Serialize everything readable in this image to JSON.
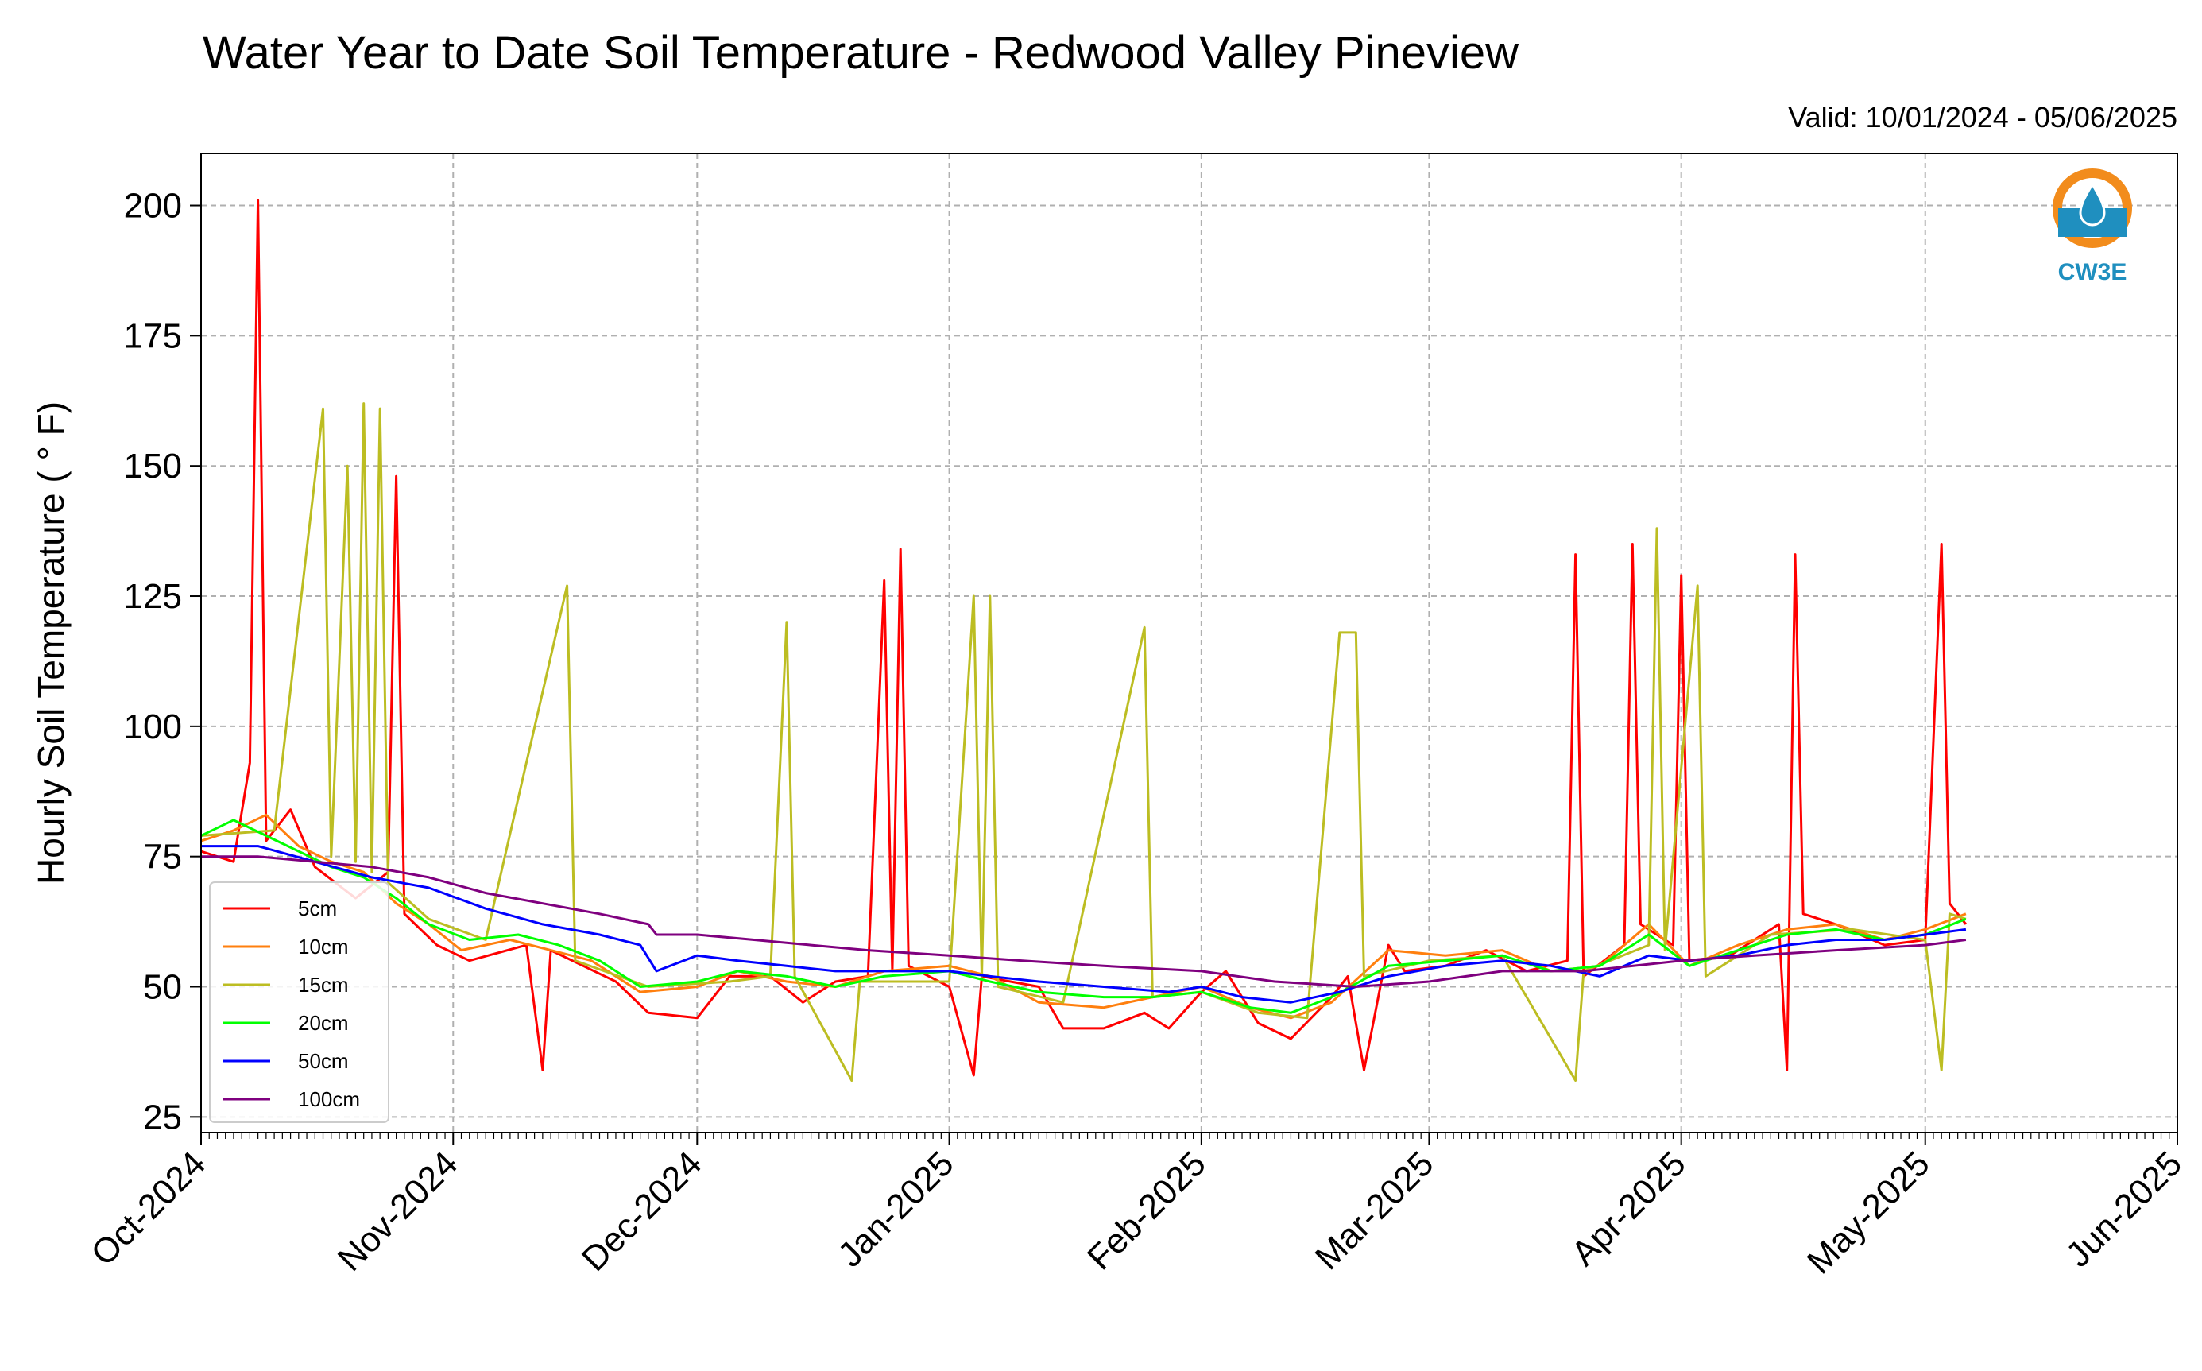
{
  "chart_data": {
    "type": "line",
    "title": "Water Year to Date Soil Temperature - Redwood Valley Pineview",
    "subtitle": "Valid: 10/01/2024 - 05/06/2025",
    "xlabel": "",
    "ylabel": "Hourly Soil Temperature ( ° F)",
    "xlim": [
      "2024-10-01",
      "2025-06-01"
    ],
    "ylim": [
      22,
      210
    ],
    "y_ticks": [
      25,
      50,
      75,
      100,
      125,
      150,
      175,
      200
    ],
    "x_ticks": [
      "2024-10-01",
      "2024-11-01",
      "2024-12-01",
      "2025-01-01",
      "2025-02-01",
      "2025-03-01",
      "2025-04-01",
      "2025-05-01",
      "2025-06-01"
    ],
    "x_tick_labels": [
      "Oct-2024",
      "Nov-2024",
      "Dec-2024",
      "Jan-2025",
      "Feb-2025",
      "Mar-2025",
      "Apr-2025",
      "May-2025",
      "Jun-2025"
    ],
    "grid": true,
    "legend_position": "lower-left",
    "series": [
      {
        "name": "5cm",
        "color": "#ff0000",
        "points": [
          [
            "2024-10-01",
            76
          ],
          [
            "2024-10-05",
            74
          ],
          [
            "2024-10-07",
            93
          ],
          [
            "2024-10-08",
            201
          ],
          [
            "2024-10-09",
            78
          ],
          [
            "2024-10-12",
            84
          ],
          [
            "2024-10-15",
            73
          ],
          [
            "2024-10-20",
            67
          ],
          [
            "2024-10-24",
            72
          ],
          [
            "2024-10-25",
            148
          ],
          [
            "2024-10-26",
            64
          ],
          [
            "2024-10-30",
            58
          ],
          [
            "2024-11-03",
            55
          ],
          [
            "2024-11-10",
            58
          ],
          [
            "2024-11-12",
            34
          ],
          [
            "2024-11-13",
            57
          ],
          [
            "2024-11-17",
            54
          ],
          [
            "2024-11-21",
            51
          ],
          [
            "2024-11-25",
            45
          ],
          [
            "2024-12-01",
            44
          ],
          [
            "2024-12-05",
            52
          ],
          [
            "2024-12-10",
            52
          ],
          [
            "2024-12-14",
            47
          ],
          [
            "2024-12-18",
            51
          ],
          [
            "2024-12-22",
            52
          ],
          [
            "2024-12-24",
            128
          ],
          [
            "2024-12-25",
            53
          ],
          [
            "2024-12-26",
            134
          ],
          [
            "2024-12-27",
            54
          ],
          [
            "2025-01-01",
            50
          ],
          [
            "2025-01-04",
            33
          ],
          [
            "2025-01-05",
            52
          ],
          [
            "2025-01-12",
            50
          ],
          [
            "2025-01-15",
            42
          ],
          [
            "2025-01-20",
            42
          ],
          [
            "2025-01-25",
            45
          ],
          [
            "2025-01-28",
            42
          ],
          [
            "2025-02-01",
            49
          ],
          [
            "2025-02-04",
            53
          ],
          [
            "2025-02-08",
            43
          ],
          [
            "2025-02-12",
            40
          ],
          [
            "2025-02-17",
            48
          ],
          [
            "2025-02-19",
            52
          ],
          [
            "2025-02-21",
            34
          ],
          [
            "2025-02-24",
            58
          ],
          [
            "2025-02-26",
            53
          ],
          [
            "2025-03-03",
            54
          ],
          [
            "2025-03-08",
            57
          ],
          [
            "2025-03-13",
            53
          ],
          [
            "2025-03-18",
            55
          ],
          [
            "2025-03-19",
            133
          ],
          [
            "2025-03-20",
            52
          ],
          [
            "2025-03-25",
            58
          ],
          [
            "2025-03-26",
            135
          ],
          [
            "2025-03-27",
            62
          ],
          [
            "2025-03-31",
            58
          ],
          [
            "2025-04-01",
            129
          ],
          [
            "2025-04-02",
            55
          ],
          [
            "2025-04-07",
            56
          ],
          [
            "2025-04-13",
            62
          ],
          [
            "2025-04-14",
            34
          ],
          [
            "2025-04-15",
            133
          ],
          [
            "2025-04-16",
            64
          ],
          [
            "2025-04-20",
            62
          ],
          [
            "2025-04-26",
            58
          ],
          [
            "2025-05-01",
            59
          ],
          [
            "2025-05-03",
            135
          ],
          [
            "2025-05-04",
            66
          ],
          [
            "2025-05-06",
            62
          ]
        ]
      },
      {
        "name": "10cm",
        "color": "#ff7f0e",
        "points": [
          [
            "2024-10-01",
            78
          ],
          [
            "2024-10-05",
            80
          ],
          [
            "2024-10-09",
            83
          ],
          [
            "2024-10-13",
            77
          ],
          [
            "2024-10-17",
            74
          ],
          [
            "2024-10-21",
            72
          ],
          [
            "2024-10-25",
            66
          ],
          [
            "2024-10-29",
            62
          ],
          [
            "2024-11-02",
            57
          ],
          [
            "2024-11-08",
            59
          ],
          [
            "2024-11-13",
            57
          ],
          [
            "2024-11-18",
            55
          ],
          [
            "2024-11-24",
            49
          ],
          [
            "2024-12-01",
            50
          ],
          [
            "2024-12-06",
            53
          ],
          [
            "2024-12-12",
            51
          ],
          [
            "2024-12-18",
            50
          ],
          [
            "2024-12-24",
            53
          ],
          [
            "2025-01-01",
            54
          ],
          [
            "2025-01-06",
            52
          ],
          [
            "2025-01-12",
            47
          ],
          [
            "2025-01-20",
            46
          ],
          [
            "2025-01-26",
            48
          ],
          [
            "2025-02-01",
            50
          ],
          [
            "2025-02-07",
            46
          ],
          [
            "2025-02-12",
            44
          ],
          [
            "2025-02-17",
            47
          ],
          [
            "2025-02-24",
            57
          ],
          [
            "2025-03-03",
            56
          ],
          [
            "2025-03-10",
            57
          ],
          [
            "2025-03-16",
            53
          ],
          [
            "2025-03-22",
            54
          ],
          [
            "2025-03-28",
            62
          ],
          [
            "2025-04-02",
            54
          ],
          [
            "2025-04-08",
            58
          ],
          [
            "2025-04-14",
            61
          ],
          [
            "2025-04-20",
            62
          ],
          [
            "2025-04-26",
            59
          ],
          [
            "2025-05-01",
            61
          ],
          [
            "2025-05-06",
            64
          ]
        ]
      },
      {
        "name": "15cm",
        "color": "#bcbd22",
        "points": [
          [
            "2024-10-01",
            79
          ],
          [
            "2024-10-10",
            80
          ],
          [
            "2024-10-16",
            161
          ],
          [
            "2024-10-17",
            75
          ],
          [
            "2024-10-19",
            150
          ],
          [
            "2024-10-20",
            74
          ],
          [
            "2024-10-21",
            162
          ],
          [
            "2024-10-22",
            72
          ],
          [
            "2024-10-23",
            161
          ],
          [
            "2024-10-24",
            70
          ],
          [
            "2024-10-29",
            63
          ],
          [
            "2024-11-05",
            59
          ],
          [
            "2024-11-15",
            127
          ],
          [
            "2024-11-16",
            55
          ],
          [
            "2024-11-25",
            50
          ],
          [
            "2024-12-05",
            51
          ],
          [
            "2024-12-10",
            52
          ],
          [
            "2024-12-12",
            120
          ],
          [
            "2024-12-13",
            52
          ],
          [
            "2024-12-20",
            32
          ],
          [
            "2024-12-21",
            51
          ],
          [
            "2025-01-01",
            51
          ],
          [
            "2025-01-04",
            125
          ],
          [
            "2025-01-05",
            52
          ],
          [
            "2025-01-06",
            125
          ],
          [
            "2025-01-07",
            50
          ],
          [
            "2025-01-15",
            47
          ],
          [
            "2025-01-25",
            119
          ],
          [
            "2025-01-26",
            48
          ],
          [
            "2025-02-01",
            49
          ],
          [
            "2025-02-08",
            45
          ],
          [
            "2025-02-14",
            44
          ],
          [
            "2025-02-18",
            118
          ],
          [
            "2025-02-20",
            118
          ],
          [
            "2025-02-21",
            52
          ],
          [
            "2025-03-01",
            55
          ],
          [
            "2025-03-10",
            56
          ],
          [
            "2025-03-19",
            32
          ],
          [
            "2025-03-20",
            53
          ],
          [
            "2025-03-28",
            58
          ],
          [
            "2025-03-29",
            138
          ],
          [
            "2025-03-30",
            57
          ],
          [
            "2025-04-03",
            127
          ],
          [
            "2025-04-04",
            52
          ],
          [
            "2025-04-12",
            60
          ],
          [
            "2025-04-22",
            61
          ],
          [
            "2025-05-01",
            59
          ],
          [
            "2025-05-03",
            34
          ],
          [
            "2025-05-04",
            64
          ],
          [
            "2025-05-06",
            63
          ]
        ]
      },
      {
        "name": "20cm",
        "color": "#00ff00",
        "points": [
          [
            "2024-10-01",
            79
          ],
          [
            "2024-10-05",
            82
          ],
          [
            "2024-10-09",
            79
          ],
          [
            "2024-10-13",
            76
          ],
          [
            "2024-10-17",
            73
          ],
          [
            "2024-10-21",
            71
          ],
          [
            "2024-10-25",
            67
          ],
          [
            "2024-10-29",
            62
          ],
          [
            "2024-11-03",
            59
          ],
          [
            "2024-11-09",
            60
          ],
          [
            "2024-11-14",
            58
          ],
          [
            "2024-11-19",
            55
          ],
          [
            "2024-11-24",
            50
          ],
          [
            "2024-12-01",
            51
          ],
          [
            "2024-12-06",
            53
          ],
          [
            "2024-12-12",
            52
          ],
          [
            "2024-12-18",
            50
          ],
          [
            "2024-12-24",
            52
          ],
          [
            "2025-01-01",
            53
          ],
          [
            "2025-01-06",
            51
          ],
          [
            "2025-01-12",
            49
          ],
          [
            "2025-01-20",
            48
          ],
          [
            "2025-01-26",
            48
          ],
          [
            "2025-02-01",
            49
          ],
          [
            "2025-02-07",
            46
          ],
          [
            "2025-02-12",
            45
          ],
          [
            "2025-02-17",
            48
          ],
          [
            "2025-02-24",
            54
          ],
          [
            "2025-03-03",
            55
          ],
          [
            "2025-03-10",
            56
          ],
          [
            "2025-03-16",
            53
          ],
          [
            "2025-03-22",
            54
          ],
          [
            "2025-03-28",
            60
          ],
          [
            "2025-04-02",
            54
          ],
          [
            "2025-04-08",
            57
          ],
          [
            "2025-04-14",
            60
          ],
          [
            "2025-04-20",
            61
          ],
          [
            "2025-04-26",
            59
          ],
          [
            "2025-05-01",
            60
          ],
          [
            "2025-05-06",
            63
          ]
        ]
      },
      {
        "name": "50cm",
        "color": "#0000ff",
        "points": [
          [
            "2024-10-01",
            77
          ],
          [
            "2024-10-08",
            77
          ],
          [
            "2024-10-15",
            74
          ],
          [
            "2024-10-22",
            71
          ],
          [
            "2024-10-29",
            69
          ],
          [
            "2024-11-05",
            65
          ],
          [
            "2024-11-12",
            62
          ],
          [
            "2024-11-19",
            60
          ],
          [
            "2024-11-24",
            58
          ],
          [
            "2024-11-26",
            53
          ],
          [
            "2024-12-01",
            56
          ],
          [
            "2024-12-06",
            55
          ],
          [
            "2024-12-12",
            54
          ],
          [
            "2024-12-18",
            53
          ],
          [
            "2024-12-24",
            53
          ],
          [
            "2025-01-01",
            53
          ],
          [
            "2025-01-06",
            52
          ],
          [
            "2025-01-12",
            51
          ],
          [
            "2025-01-20",
            50
          ],
          [
            "2025-01-28",
            49
          ],
          [
            "2025-02-01",
            50
          ],
          [
            "2025-02-06",
            48
          ],
          [
            "2025-02-12",
            47
          ],
          [
            "2025-02-18",
            49
          ],
          [
            "2025-02-24",
            52
          ],
          [
            "2025-03-03",
            54
          ],
          [
            "2025-03-10",
            55
          ],
          [
            "2025-03-16",
            54
          ],
          [
            "2025-03-22",
            52
          ],
          [
            "2025-03-28",
            56
          ],
          [
            "2025-04-02",
            55
          ],
          [
            "2025-04-08",
            56
          ],
          [
            "2025-04-14",
            58
          ],
          [
            "2025-04-20",
            59
          ],
          [
            "2025-04-26",
            59
          ],
          [
            "2025-05-01",
            60
          ],
          [
            "2025-05-06",
            61
          ]
        ]
      },
      {
        "name": "100cm",
        "color": "#7f007f",
        "points": [
          [
            "2024-10-01",
            75
          ],
          [
            "2024-10-08",
            75
          ],
          [
            "2024-10-15",
            74
          ],
          [
            "2024-10-22",
            73
          ],
          [
            "2024-10-29",
            71
          ],
          [
            "2024-11-05",
            68
          ],
          [
            "2024-11-12",
            66
          ],
          [
            "2024-11-19",
            64
          ],
          [
            "2024-11-25",
            62
          ],
          [
            "2024-11-26",
            60
          ],
          [
            "2024-12-01",
            60
          ],
          [
            "2024-12-08",
            59
          ],
          [
            "2024-12-15",
            58
          ],
          [
            "2024-12-22",
            57
          ],
          [
            "2025-01-01",
            56
          ],
          [
            "2025-01-10",
            55
          ],
          [
            "2025-01-20",
            54
          ],
          [
            "2025-02-01",
            53
          ],
          [
            "2025-02-10",
            51
          ],
          [
            "2025-02-20",
            50
          ],
          [
            "2025-03-01",
            51
          ],
          [
            "2025-03-10",
            53
          ],
          [
            "2025-03-20",
            53
          ],
          [
            "2025-04-01",
            55
          ],
          [
            "2025-04-10",
            56
          ],
          [
            "2025-04-20",
            57
          ],
          [
            "2025-05-01",
            58
          ],
          [
            "2025-05-06",
            59
          ]
        ]
      }
    ]
  },
  "logo": {
    "text": "CW3E",
    "ring_color": "#f28c1c",
    "accent_color": "#1f8fbf"
  }
}
